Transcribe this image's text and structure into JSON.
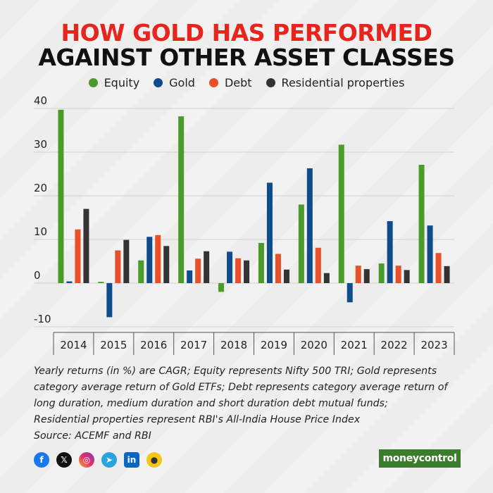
{
  "title_line1": "HOW GOLD HAS PERFORMED",
  "title_line2": "AGAINST OTHER ASSET CLASSES",
  "colors": {
    "equity": "#4c9a2a",
    "gold": "#0f4c8c",
    "debt": "#e8502a",
    "residential": "#333333",
    "title_accent": "#e8241c"
  },
  "chart_data": {
    "type": "bar",
    "categories": [
      "2014",
      "2015",
      "2016",
      "2017",
      "2018",
      "2019",
      "2020",
      "2021",
      "2022",
      "2023"
    ],
    "series": [
      {
        "name": "Equity",
        "values": [
          39.7,
          0.3,
          5.2,
          38.2,
          -2.0,
          9.2,
          18.0,
          31.7,
          4.5,
          27.1
        ]
      },
      {
        "name": "Gold",
        "values": [
          0.4,
          -7.8,
          10.6,
          2.9,
          7.2,
          23.0,
          26.3,
          -4.4,
          14.2,
          13.2
        ]
      },
      {
        "name": "Debt",
        "values": [
          12.3,
          7.5,
          11.0,
          5.6,
          5.7,
          6.7,
          8.1,
          4.0,
          4.0,
          6.9
        ]
      },
      {
        "name": "Residential properties",
        "values": [
          17.0,
          9.9,
          8.5,
          7.3,
          5.2,
          3.1,
          2.3,
          3.2,
          3.0,
          3.9
        ]
      }
    ],
    "yticks": [
      "40",
      "30",
      "20",
      "10",
      "0",
      "-10"
    ],
    "ylim": [
      -10,
      40
    ],
    "grid": true,
    "legend_position": "top-center"
  },
  "notes": [
    "Yearly returns (in %) are CAGR; Equity represents Nifty 500 TRI; Gold represents",
    "category average return of Gold ETFs; Debt represents category average return of",
    "long duration, medium duration and short duration debt mutual funds;",
    "Residential properties represent RBI's All-India House Price Index",
    "Source: ACEMF and RBI"
  ],
  "social_icons": [
    "facebook-icon",
    "x-icon",
    "instagram-icon",
    "telegram-icon",
    "linkedin-icon",
    "koo-icon"
  ],
  "brand": "moneycontrol"
}
